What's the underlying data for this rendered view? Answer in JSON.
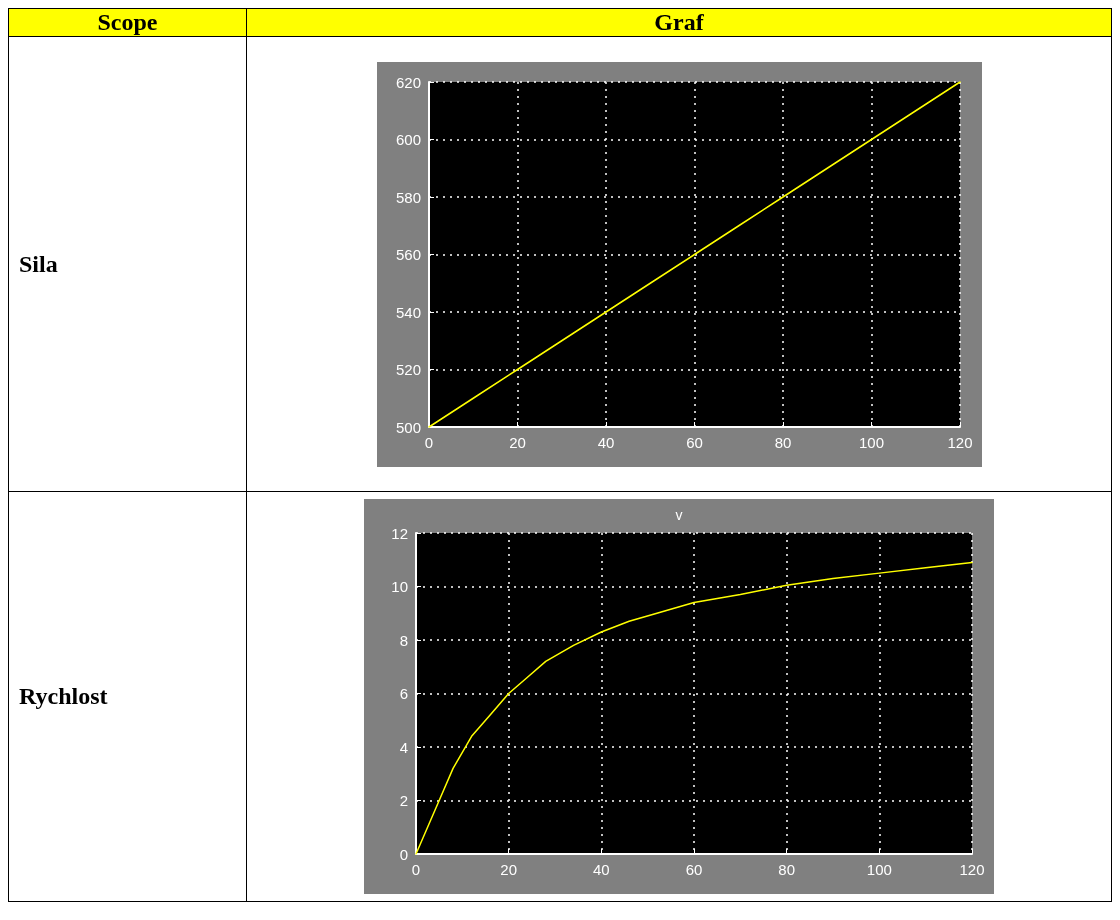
{
  "chart_data": [
    {
      "type": "line",
      "ylabel": "Sila",
      "annotations": [
        "Scope",
        "Graf"
      ],
      "x": [
        0,
        10,
        20,
        30,
        40,
        50,
        60,
        70,
        80,
        90,
        100,
        110,
        120
      ],
      "series": [
        {
          "color": "#ffff00",
          "values": [
            500,
            510,
            520,
            530,
            540,
            550,
            560,
            570,
            580,
            590,
            600,
            610,
            620
          ]
        }
      ],
      "xlim": [
        0,
        120
      ],
      "xticks": [
        0,
        20,
        40,
        60,
        80,
        100,
        120
      ],
      "ylim": [
        500,
        620
      ],
      "yticks": [
        500,
        520,
        540,
        560,
        580,
        600,
        620
      ],
      "grid": true,
      "marker": "none",
      "line_style": "solid"
    },
    {
      "type": "line",
      "title": "v",
      "ylabel": "Rychlost",
      "x": [
        0,
        5,
        8,
        12,
        16,
        20,
        24,
        28,
        34,
        40,
        46,
        52,
        60,
        70,
        80,
        90,
        100,
        110,
        120
      ],
      "series": [
        {
          "color": "#ffff00",
          "values": [
            0,
            2,
            3.2,
            4.4,
            5.2,
            6,
            6.6,
            7.2,
            7.8,
            8.3,
            8.7,
            9,
            9.4,
            9.7,
            10.05,
            10.3,
            10.5,
            10.7,
            10.9
          ]
        }
      ],
      "xlim": [
        0,
        120
      ],
      "xticks": [
        0,
        20,
        40,
        60,
        80,
        100,
        120
      ],
      "ylim": [
        0,
        12
      ],
      "yticks": [
        0,
        2,
        4,
        6,
        8,
        10,
        12
      ],
      "grid": true,
      "marker": "none",
      "line_style": "solid"
    }
  ]
}
